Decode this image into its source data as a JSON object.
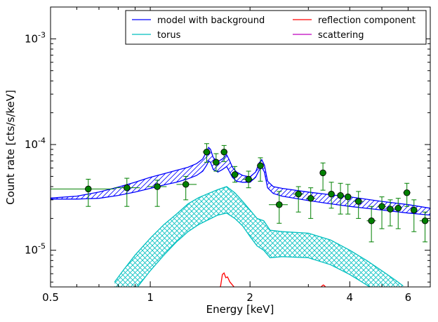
{
  "chart_data": {
    "type": "line",
    "xlabel": "Energy [keV]",
    "ylabel": "Count rate [cts/s/keV]",
    "xscale": "log",
    "yscale": "log",
    "xlim": [
      0.5,
      7.0
    ],
    "ylim": [
      4.5e-06,
      0.002
    ],
    "x_ticks": [
      0.5,
      1,
      2,
      4,
      6
    ],
    "x_tick_labels": [
      "0.5",
      "1",
      "2",
      "4",
      "6"
    ],
    "y_ticks": [
      1e-05,
      0.0001,
      0.001
    ],
    "y_tick_labels": [
      {
        "base": "10",
        "exp": "-5"
      },
      {
        "base": "10",
        "exp": "-4"
      },
      {
        "base": "10",
        "exp": "-3"
      }
    ],
    "grid": false,
    "legend_position": "top-right",
    "legend": [
      {
        "label": "model with background",
        "color": "#0000ff"
      },
      {
        "label": "reflection component",
        "color": "#ff0000"
      },
      {
        "label": "torus",
        "color": "#00bfbf"
      },
      {
        "label": "scattering",
        "color": "#bf00bf"
      }
    ],
    "data_points": {
      "color": "#008000",
      "points": [
        {
          "x": 0.65,
          "y": 3.8e-05,
          "xlo": 0.5,
          "xhi": 0.78,
          "ylo": 2.6e-05,
          "yhi": 4.7e-05
        },
        {
          "x": 0.85,
          "y": 3.9e-05,
          "xlo": 0.78,
          "xhi": 0.93,
          "ylo": 2.6e-05,
          "yhi": 4.8e-05
        },
        {
          "x": 1.05,
          "y": 4e-05,
          "xlo": 0.98,
          "xhi": 1.12,
          "ylo": 2.6e-05,
          "yhi": 4.6e-05
        },
        {
          "x": 1.28,
          "y": 4.2e-05,
          "xlo": 1.2,
          "xhi": 1.38,
          "ylo": 3e-05,
          "yhi": 5e-05
        },
        {
          "x": 1.48,
          "y": 8.5e-05,
          "xlo": 1.44,
          "xhi": 1.52,
          "ylo": 6.8e-05,
          "yhi": 0.000102
        },
        {
          "x": 1.58,
          "y": 6.8e-05,
          "xlo": 1.54,
          "xhi": 1.62,
          "ylo": 5.6e-05,
          "yhi": 8.2e-05
        },
        {
          "x": 1.67,
          "y": 8.5e-05,
          "xlo": 1.63,
          "xhi": 1.71,
          "ylo": 6.9e-05,
          "yhi": 9.8e-05
        },
        {
          "x": 1.8,
          "y": 5.2e-05,
          "xlo": 1.75,
          "xhi": 1.85,
          "ylo": 4.4e-05,
          "yhi": 6.2e-05
        },
        {
          "x": 1.98,
          "y": 4.7e-05,
          "xlo": 1.9,
          "xhi": 2.06,
          "ylo": 3.9e-05,
          "yhi": 5.6e-05
        },
        {
          "x": 2.15,
          "y": 6.3e-05,
          "xlo": 2.1,
          "xhi": 2.2,
          "ylo": 4.5e-05,
          "yhi": 7.5e-05
        },
        {
          "x": 2.45,
          "y": 2.7e-05,
          "xlo": 2.28,
          "xhi": 2.6,
          "ylo": 1.8e-05,
          "yhi": 3.6e-05
        },
        {
          "x": 2.8,
          "y": 3.4e-05,
          "xlo": 2.7,
          "xhi": 2.9,
          "ylo": 2.3e-05,
          "yhi": 4e-05
        },
        {
          "x": 3.05,
          "y": 3.1e-05,
          "xlo": 2.95,
          "xhi": 3.15,
          "ylo": 2e-05,
          "yhi": 3.9e-05
        },
        {
          "x": 3.32,
          "y": 5.4e-05,
          "xlo": 3.25,
          "xhi": 3.4,
          "ylo": 3.7e-05,
          "yhi": 6.7e-05
        },
        {
          "x": 3.52,
          "y": 3.4e-05,
          "xlo": 3.45,
          "xhi": 3.6,
          "ylo": 2.5e-05,
          "yhi": 4.4e-05
        },
        {
          "x": 3.75,
          "y": 3.3e-05,
          "xlo": 3.65,
          "xhi": 3.85,
          "ylo": 2.2e-05,
          "yhi": 4.3e-05
        },
        {
          "x": 3.95,
          "y": 3.2e-05,
          "xlo": 3.9,
          "xhi": 4.05,
          "ylo": 2.2e-05,
          "yhi": 4.2e-05
        },
        {
          "x": 4.25,
          "y": 2.9e-05,
          "xlo": 4.1,
          "xhi": 4.4,
          "ylo": 2e-05,
          "yhi": 3.6e-05
        },
        {
          "x": 4.65,
          "y": 1.9e-05,
          "xlo": 4.5,
          "xhi": 4.8,
          "ylo": 1.2e-05,
          "yhi": 2.6e-05
        },
        {
          "x": 5.0,
          "y": 2.6e-05,
          "xlo": 4.85,
          "xhi": 5.15,
          "ylo": 1.6e-05,
          "yhi": 3.2e-05
        },
        {
          "x": 5.3,
          "y": 2.45e-05,
          "xlo": 5.15,
          "xhi": 5.45,
          "ylo": 1.7e-05,
          "yhi": 3e-05
        },
        {
          "x": 5.6,
          "y": 2.5e-05,
          "xlo": 5.45,
          "xhi": 5.75,
          "ylo": 1.6e-05,
          "yhi": 3.1e-05
        },
        {
          "x": 5.95,
          "y": 3.5e-05,
          "xlo": 5.8,
          "xhi": 6.1,
          "ylo": 2.6e-05,
          "yhi": 4.3e-05
        },
        {
          "x": 6.25,
          "y": 2.4e-05,
          "xlo": 6.1,
          "xhi": 6.4,
          "ylo": 1.5e-05,
          "yhi": 3e-05
        },
        {
          "x": 6.75,
          "y": 1.9e-05,
          "xlo": 6.5,
          "xhi": 7.0,
          "ylo": 1.2e-05,
          "yhi": 2.3e-05
        }
      ]
    },
    "series": [
      {
        "name": "model with background",
        "color": "#0000ff",
        "x": [
          0.5,
          0.6,
          0.7,
          0.8,
          0.9,
          1.0,
          1.1,
          1.2,
          1.3,
          1.38,
          1.44,
          1.48,
          1.5,
          1.52,
          1.55,
          1.6,
          1.65,
          1.7,
          1.73,
          1.77,
          1.82,
          1.9,
          2.0,
          2.08,
          2.13,
          2.17,
          2.21,
          2.26,
          2.35,
          2.5,
          3.0,
          3.5,
          4.0,
          5.0,
          6.0,
          7.0
        ],
        "upper": [
          3.12e-05,
          3.25e-05,
          3.55e-05,
          3.95e-05,
          4.4e-05,
          4.9e-05,
          5.3e-05,
          5.7e-05,
          6.1e-05,
          6.6e-05,
          7.3e-05,
          8.6e-05,
          9.4e-05,
          9e-05,
          7.5e-05,
          6.9e-05,
          7.3e-05,
          8e-05,
          7.2e-05,
          6.1e-05,
          5.5e-05,
          5.1e-05,
          4.95e-05,
          5.5e-05,
          6.7e-05,
          7.2e-05,
          6.4e-05,
          4.5e-05,
          4e-05,
          3.85e-05,
          3.55e-05,
          3.35e-05,
          3.2e-05,
          2.9e-05,
          2.7e-05,
          2.5e-05
        ],
        "lower": [
          3.05e-05,
          3.05e-05,
          3.1e-05,
          3.3e-05,
          3.55e-05,
          3.85e-05,
          4.15e-05,
          4.4e-05,
          4.75e-05,
          5.1e-05,
          5.6e-05,
          6.4e-05,
          7e-05,
          6.8e-05,
          5.8e-05,
          5.5e-05,
          5.8e-05,
          6.2e-05,
          5.6e-05,
          4.9e-05,
          4.5e-05,
          4.4e-05,
          4.4e-05,
          4.9e-05,
          5.7e-05,
          6.1e-05,
          5.5e-05,
          3.9e-05,
          3.45e-05,
          3.25e-05,
          2.95e-05,
          2.75e-05,
          2.6e-05,
          2.4e-05,
          2.25e-05,
          2.15e-05
        ]
      },
      {
        "name": "torus",
        "color": "#00bfbf",
        "x": [
          0.78,
          0.83,
          0.9,
          1.0,
          1.1,
          1.2,
          1.3,
          1.4,
          1.5,
          1.6,
          1.7,
          1.8,
          1.9,
          2.0,
          2.1,
          2.2,
          2.3,
          2.5,
          3.0,
          3.5,
          4.0,
          4.5,
          5.0,
          5.5,
          5.8
        ],
        "upper": [
          5e-06,
          6.5e-06,
          9e-06,
          1.3e-05,
          1.75e-05,
          2.2e-05,
          2.75e-05,
          3.15e-05,
          3.45e-05,
          3.75e-05,
          4e-05,
          3.5e-05,
          2.9e-05,
          2.4e-05,
          2e-05,
          1.9e-05,
          1.55e-05,
          1.5e-05,
          1.45e-05,
          1.25e-05,
          1e-05,
          8e-06,
          6.4e-06,
          5.2e-06,
          4.6e-06
        ],
        "lower": [
          2.2e-06,
          2.9e-06,
          4.2e-06,
          6.4e-06,
          9e-06,
          1.2e-05,
          1.5e-05,
          1.75e-05,
          1.95e-05,
          2.15e-05,
          2.25e-05,
          2e-05,
          1.7e-05,
          1.35e-05,
          1.1e-05,
          1e-05,
          8.5e-06,
          8.7e-06,
          8.5e-06,
          7.3e-06,
          5.9e-06,
          4.7e-06,
          3.8e-06,
          3.1e-06,
          2.8e-06
        ]
      },
      {
        "name": "reflection component",
        "color": "#ff0000",
        "segments": [
          {
            "x": [
              1.6,
              1.63,
              1.65,
              1.67,
              1.69,
              1.71,
              1.74,
              1.77,
              1.8
            ],
            "y": [
              4e-06,
              4.6e-06,
              5.9e-06,
              6.1e-06,
              5.5e-06,
              5.6e-06,
              5e-06,
              4.7e-06,
              4.4e-06
            ]
          },
          {
            "x": [
              3.26,
              3.3,
              3.33,
              3.36,
              3.4
            ],
            "y": [
              4.4e-06,
              4.6e-06,
              4.7e-06,
              4.6e-06,
              4.4e-06
            ]
          }
        ]
      }
    ]
  }
}
